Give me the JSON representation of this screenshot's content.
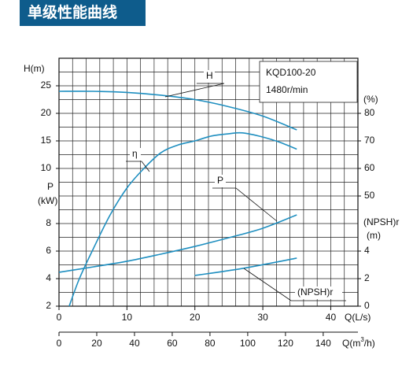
{
  "chart_data": {
    "type": "line",
    "title": "单级性能曲线",
    "model": "KQD100-20",
    "speed": "1480r/min",
    "xlabel": "Q(L/s)",
    "xlim": [
      0,
      44
    ],
    "xticks": [
      0,
      10,
      20,
      30,
      40
    ],
    "x2label": {
      "value": "Q(m",
      "sup": "3",
      "tail": "/h)"
    },
    "x2lim": [
      0,
      158.4
    ],
    "x2ticks": [
      0,
      20,
      40,
      60,
      80,
      100,
      120,
      140
    ],
    "axes": {
      "H": {
        "side": "left",
        "label": [
          "H(m)"
        ],
        "lim": [
          -15,
          30
        ],
        "ticks": [
          10,
          15,
          20,
          25
        ]
      },
      "P": {
        "side": "left",
        "label": [
          "P",
          "(kW)"
        ],
        "lim": [
          2,
          20
        ],
        "ticks": [
          2,
          4,
          6,
          8
        ]
      },
      "eta": {
        "side": "right",
        "label": [
          "(%)"
        ],
        "lim": [
          10,
          100
        ],
        "ticks": [
          50,
          60,
          70,
          80
        ]
      },
      "npsh": {
        "side": "right",
        "label": [
          "(NPSH)r",
          "(m)"
        ],
        "lim": [
          0,
          18
        ],
        "ticks": [
          0,
          2,
          4
        ]
      }
    },
    "series": [
      {
        "name": "H",
        "axis": "H",
        "color": "#1f8fc0",
        "x": [
          0,
          5,
          10,
          15,
          20,
          25,
          30,
          35
        ],
        "values": [
          24,
          24,
          23.8,
          23.3,
          22.5,
          21.2,
          19.5,
          17
        ]
      },
      {
        "name": "η",
        "axis": "eta",
        "color": "#1f8fc0",
        "x": [
          1.5,
          3,
          5,
          7.5,
          10,
          12.5,
          15,
          17.5,
          20,
          22.5,
          25,
          27,
          30,
          32.5,
          35
        ],
        "values": [
          10,
          20,
          30.6,
          43,
          52.9,
          60,
          65.7,
          68.5,
          70,
          71.8,
          72.6,
          72.9,
          71.4,
          69.5,
          67
        ]
      },
      {
        "name": "P",
        "axis": "P",
        "color": "#1f8fc0",
        "x": [
          0,
          5,
          10,
          15,
          20,
          25,
          30,
          35
        ],
        "values": [
          4.46,
          4.85,
          5.26,
          5.78,
          6.34,
          6.97,
          7.66,
          8.63
        ]
      },
      {
        "name": "(NPSH)r",
        "axis": "npsh",
        "color": "#1f8fc0",
        "x": [
          20,
          27,
          35
        ],
        "values": [
          2.23,
          2.74,
          3.49
        ]
      }
    ]
  }
}
